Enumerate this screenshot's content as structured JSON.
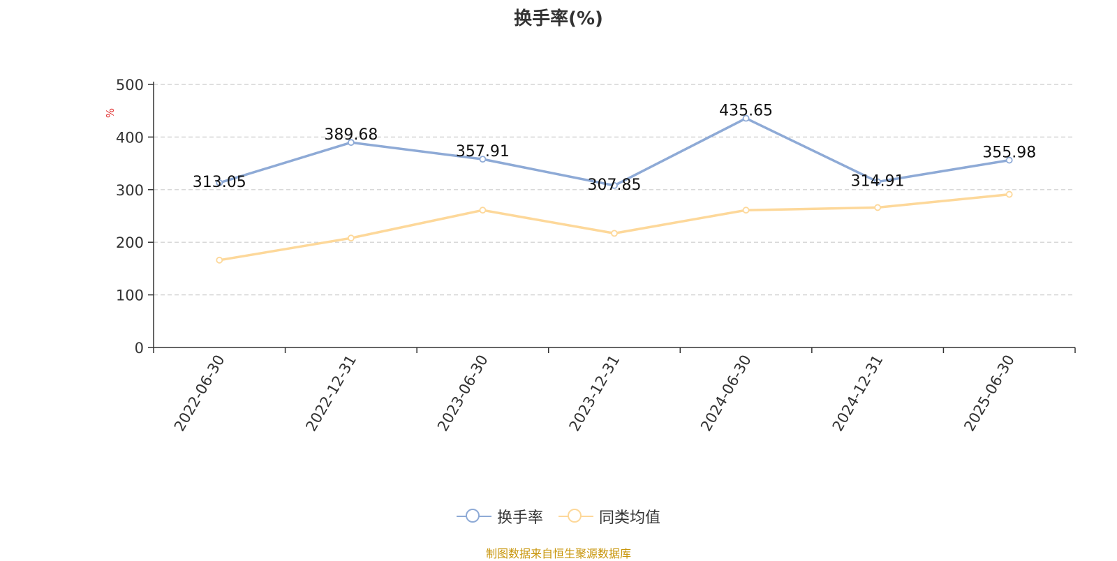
{
  "chart_data": {
    "type": "line",
    "title": "换手率(%)",
    "ylabel": "%",
    "xlabel": "",
    "ylim": [
      0,
      500
    ],
    "yticks": [
      0,
      100,
      200,
      300,
      400,
      500
    ],
    "grid": true,
    "legend_position": "bottom",
    "categories": [
      "2022-06-30",
      "2022-12-31",
      "2023-06-30",
      "2023-12-31",
      "2024-06-30",
      "2024-12-31",
      "2025-06-30"
    ],
    "series": [
      {
        "name": "换手率",
        "color": "#8eaad6",
        "values": [
          313.05,
          389.68,
          357.91,
          307.85,
          435.65,
          314.91,
          355.98
        ],
        "labels": [
          "313.05",
          "389.68",
          "357.91",
          "307.85",
          "435.65",
          "314.91",
          "355.98"
        ]
      },
      {
        "name": "同类均值",
        "color": "#fdd89a",
        "values": [
          166,
          208,
          261,
          217,
          261,
          266,
          291
        ]
      }
    ]
  },
  "source": "制图数据来自恒生聚源数据库"
}
